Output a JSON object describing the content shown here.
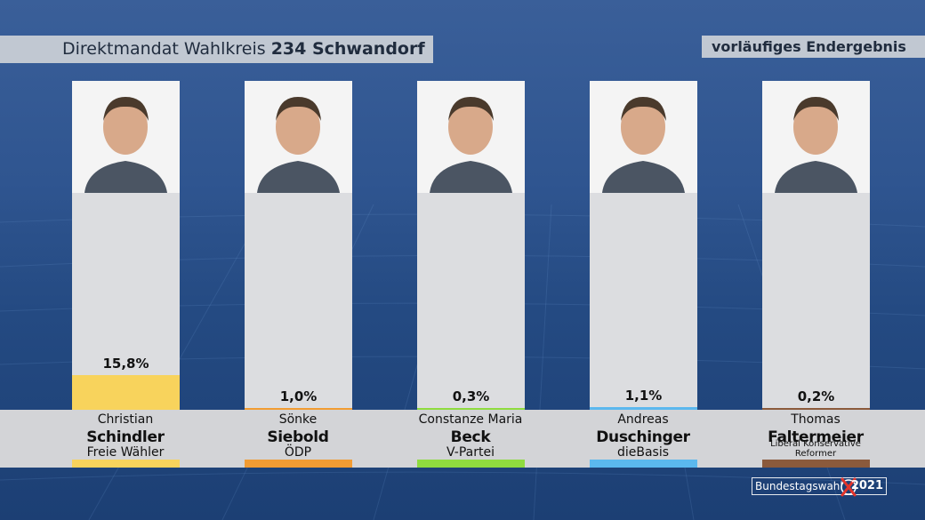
{
  "header": {
    "title_prefix": "Direktmandat Wahlkreis",
    "title_bold": "234 Schwandorf",
    "status": "vorläufiges Endergebnis"
  },
  "colors": {
    "freie_waehler": "#f8d35c",
    "oedp": "#f29c33",
    "v_partei": "#8fdc3f",
    "diebasis": "#5bb8ee",
    "lkr": "#8b5a3c"
  },
  "chart_data": {
    "type": "bar",
    "title": "Direktmandat Wahlkreis 234 Schwandorf",
    "ylim": [
      0,
      100
    ],
    "categories": [
      "Christian Schindler",
      "Sönke Siebold",
      "Constanze Maria Beck",
      "Andreas Duschinger",
      "Thomas Faltermeier"
    ],
    "values": [
      15.8,
      1.0,
      0.3,
      1.1,
      0.2
    ],
    "labels": [
      "15,8%",
      "1,0%",
      "0,3%",
      "1,1%",
      "0,2%"
    ]
  },
  "candidates": [
    {
      "first": "Christian",
      "last": "Schindler",
      "party": "Freie Wähler",
      "pct_label": "15,8%",
      "color": "#f8d35c",
      "photo_icon": "portrait-photo"
    },
    {
      "first": "Sönke",
      "last": "Siebold",
      "party": "ÖDP",
      "pct_label": "1,0%",
      "color": "#f29c33",
      "photo_icon": "portrait-photo"
    },
    {
      "first": "Constanze Maria",
      "last": "Beck",
      "party": "V-Partei",
      "pct_label": "0,3%",
      "color": "#8fdc3f",
      "photo_icon": "portrait-photo"
    },
    {
      "first": "Andreas",
      "last": "Duschinger",
      "party": "dieBasis",
      "pct_label": "1,1%",
      "color": "#5bb8ee",
      "photo_icon": "portrait-photo"
    },
    {
      "first": "Thomas",
      "last": "Faltermeier",
      "party": "Liberal Konservative Reformer",
      "pct_label": "0,2%",
      "color": "#8b5a3c",
      "photo_icon": "portrait-photo"
    }
  ],
  "logo": {
    "word": "Bundestagswahl",
    "year": "2021",
    "icon": "ballot-cross-icon"
  }
}
